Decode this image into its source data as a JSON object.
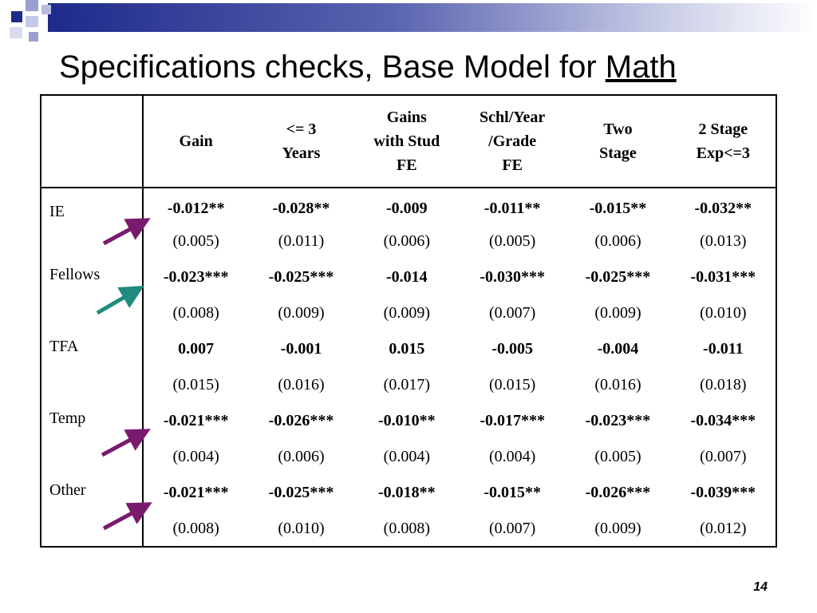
{
  "slide": {
    "title_main": "Specifications checks, Base Model for ",
    "title_subject": "Math",
    "page_number": "14"
  },
  "table": {
    "headers": [
      "",
      "Gain",
      "<= 3\nYears",
      "Gains\nwith Stud\nFE",
      "Schl/Year\n/Grade\nFE",
      "Two\nStage",
      "2 Stage\nExp<=3"
    ],
    "rows": [
      {
        "label": "IE",
        "coef": [
          "-0.012**",
          "-0.028**",
          "-0.009",
          "-0.011**",
          "-0.015**",
          "-0.032**"
        ],
        "se": [
          "(0.005)",
          "(0.011)",
          "(0.006)",
          "(0.005)",
          "(0.006)",
          "(0.013)"
        ]
      },
      {
        "label": "Fellows",
        "coef": [
          "-0.023***",
          "-0.025***",
          "-0.014",
          "-0.030***",
          "-0.025***",
          "-0.031***"
        ],
        "se": [
          "(0.008)",
          "(0.009)",
          "(0.009)",
          "(0.007)",
          "(0.009)",
          "(0.010)"
        ]
      },
      {
        "label": "TFA",
        "coef": [
          "0.007",
          "-0.001",
          "0.015",
          "-0.005",
          "-0.004",
          "-0.011"
        ],
        "se": [
          "(0.015)",
          "(0.016)",
          "(0.017)",
          "(0.015)",
          "(0.016)",
          "(0.018)"
        ]
      },
      {
        "label": "Temp",
        "coef": [
          "-0.021***",
          "-0.026***",
          "-0.010**",
          "-0.017***",
          "-0.023***",
          "-0.034***"
        ],
        "se": [
          "(0.004)",
          "(0.006)",
          "(0.004)",
          "(0.004)",
          "(0.005)",
          "(0.007)"
        ]
      },
      {
        "label": "Other",
        "coef": [
          "-0.021***",
          "-0.025***",
          "-0.018**",
          "-0.015**",
          "-0.026***",
          "-0.039***"
        ],
        "se": [
          "(0.008)",
          "(0.010)",
          "(0.008)",
          "(0.007)",
          "(0.009)",
          "(0.012)"
        ]
      }
    ]
  },
  "colors": {
    "accent_navy": "#1d2a8a",
    "arrow_purple": "#7a1a6e",
    "arrow_teal": "#1f8a80"
  }
}
